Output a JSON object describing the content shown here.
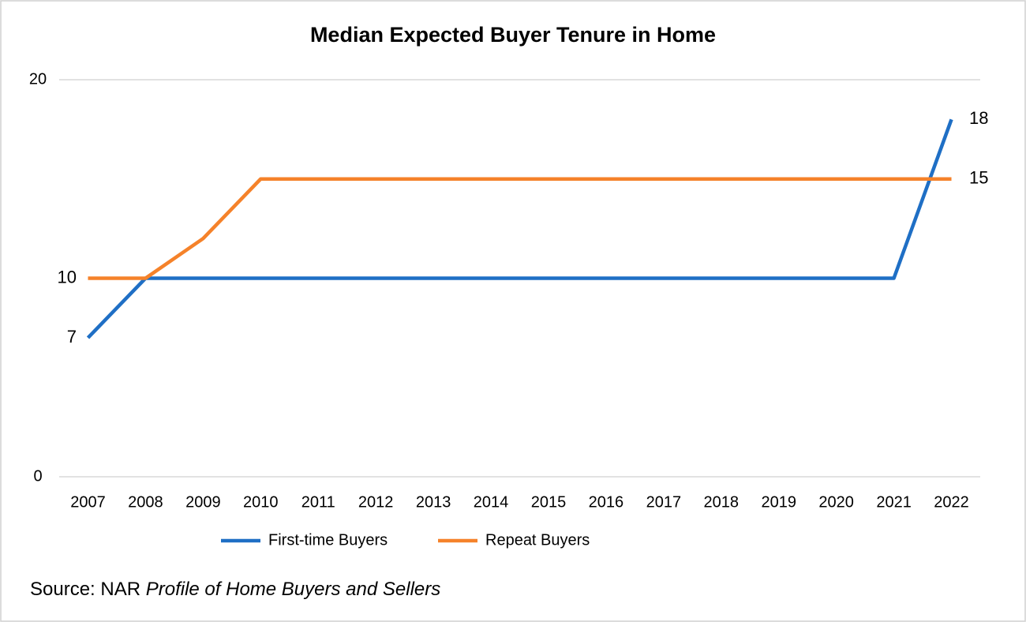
{
  "chart_data": {
    "type": "line",
    "title": "Median Expected Buyer Tenure in Home",
    "categories": [
      "2007",
      "2008",
      "2009",
      "2010",
      "2011",
      "2012",
      "2013",
      "2014",
      "2015",
      "2016",
      "2017",
      "2018",
      "2019",
      "2020",
      "2021",
      "2022"
    ],
    "series": [
      {
        "name": "First-time Buyers",
        "color": "#1f6fc5",
        "values": [
          7,
          10,
          10,
          10,
          10,
          10,
          10,
          10,
          10,
          10,
          10,
          10,
          10,
          10,
          10,
          18
        ]
      },
      {
        "name": "Repeat Buyers",
        "color": "#f5822a",
        "values": [
          10,
          10,
          12,
          15,
          15,
          15,
          15,
          15,
          15,
          15,
          15,
          15,
          15,
          15,
          15,
          15
        ]
      }
    ],
    "ylim": [
      0,
      20
    ],
    "yticks": [
      0,
      20
    ],
    "grid": true,
    "data_labels": "ends",
    "legend": "bottom",
    "source": "Source: NAR",
    "source_title": "Profile of Home Buyers and Sellers"
  }
}
